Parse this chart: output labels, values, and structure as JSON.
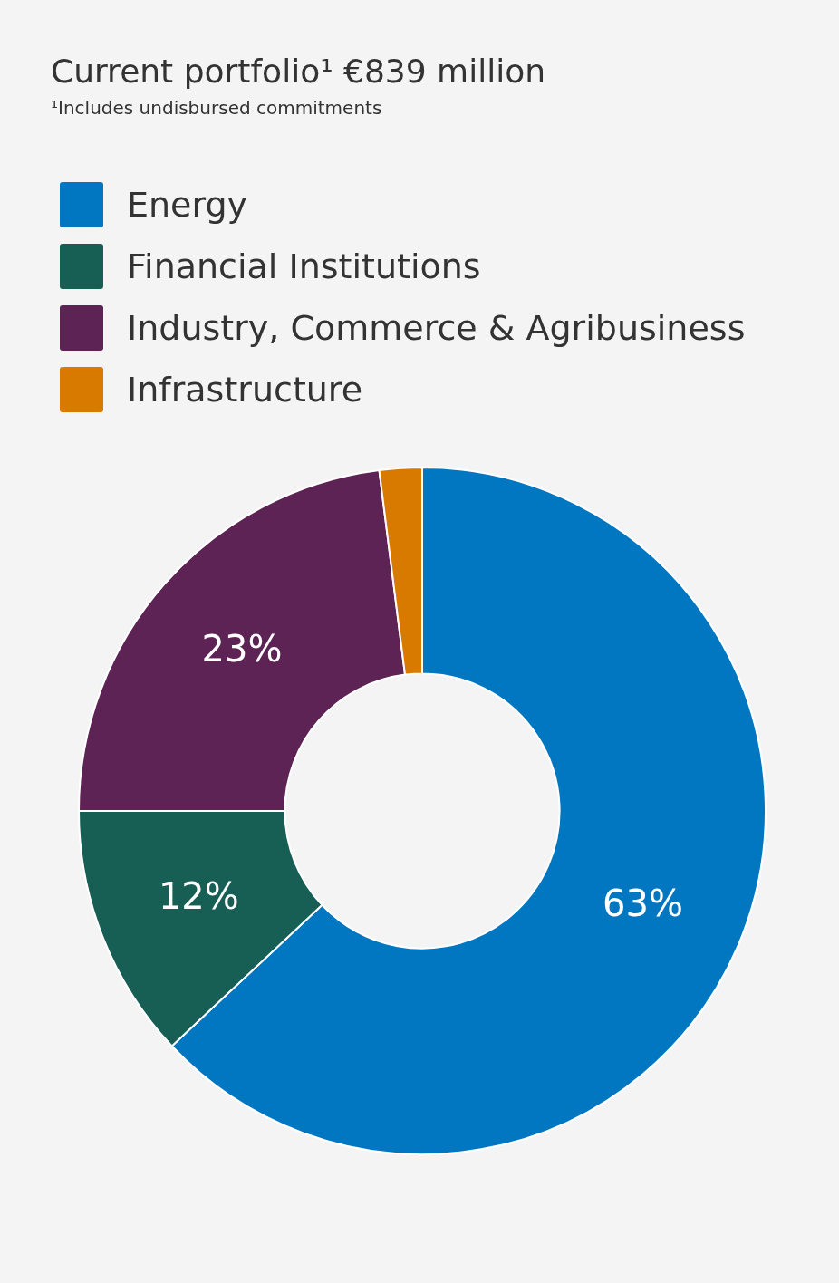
{
  "chart_data": {
    "type": "donut",
    "title": "Current portfolio¹ €839 million",
    "subtitle": "¹Includes undisbursed commitments",
    "categories": [
      "Energy",
      "Financial Institutions",
      "Industry, Commerce & Agribusiness",
      "Infrastructure"
    ],
    "values": [
      63,
      12,
      23,
      2
    ],
    "colors": [
      "#0077c0",
      "#175e54",
      "#5c2354",
      "#d97a00"
    ],
    "value_labels": [
      "63%",
      "12%",
      "23%",
      null
    ],
    "legend": "top left"
  }
}
